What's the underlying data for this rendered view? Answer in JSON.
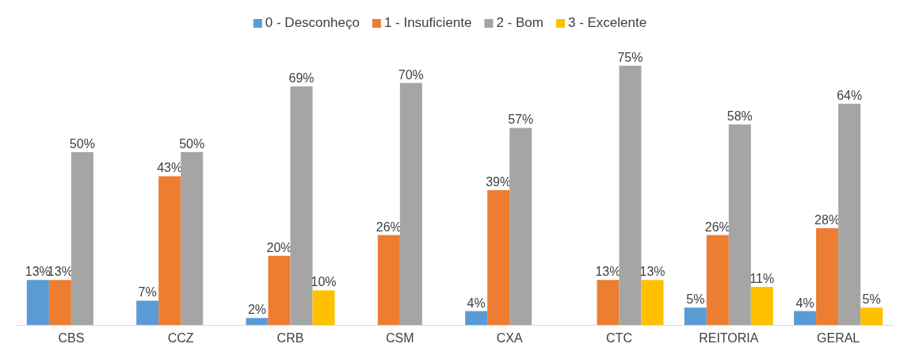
{
  "chart_data": {
    "type": "bar",
    "categories": [
      "CBS",
      "CCZ",
      "CRB",
      "CSM",
      "CXA",
      "CTC",
      "REITORIA",
      "GERAL"
    ],
    "series": [
      {
        "name": "0 - Desconheço",
        "color": "#5b9bd5",
        "values": [
          13,
          7,
          2,
          null,
          4,
          null,
          5,
          4
        ],
        "value_labels": [
          "13%",
          "7%",
          "2%",
          null,
          "4%",
          null,
          "5%",
          "4%"
        ]
      },
      {
        "name": "1 - Insuficiente",
        "color": "#ed7d31",
        "values": [
          13,
          43,
          20,
          26,
          39,
          13,
          26,
          28
        ],
        "value_labels": [
          "13%",
          "43%",
          "20%",
          "26%",
          "39%",
          "13%",
          "26%",
          "28%"
        ]
      },
      {
        "name": "2 - Bom",
        "color": "#a5a5a5",
        "values": [
          50,
          50,
          69,
          70,
          57,
          75,
          58,
          64
        ],
        "value_labels": [
          "50%",
          "50%",
          "69%",
          "70%",
          "57%",
          "75%",
          "58%",
          "64%"
        ]
      },
      {
        "name": "3 - Excelente",
        "color": "#ffc000",
        "values": [
          null,
          null,
          10,
          null,
          null,
          13,
          11,
          5
        ],
        "value_labels": [
          null,
          null,
          "10%",
          null,
          null,
          "13%",
          "11%",
          "5%"
        ]
      }
    ],
    "legend": "top"
  }
}
